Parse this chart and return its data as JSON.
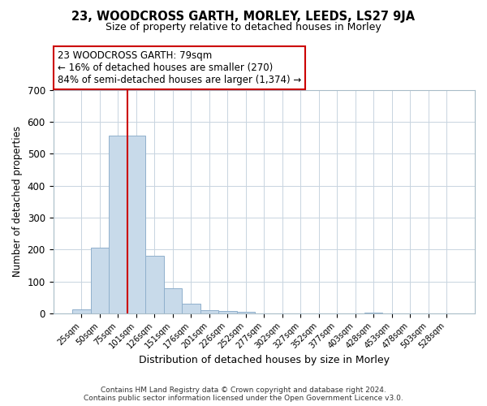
{
  "title1": "23, WOODCROSS GARTH, MORLEY, LEEDS, LS27 9JA",
  "title2": "Size of property relative to detached houses in Morley",
  "xlabel": "Distribution of detached houses by size in Morley",
  "ylabel": "Number of detached properties",
  "bin_labels": [
    "25sqm",
    "50sqm",
    "75sqm",
    "101sqm",
    "126sqm",
    "151sqm",
    "176sqm",
    "201sqm",
    "226sqm",
    "252sqm",
    "277sqm",
    "302sqm",
    "327sqm",
    "352sqm",
    "377sqm",
    "403sqm",
    "428sqm",
    "453sqm",
    "478sqm",
    "503sqm",
    "528sqm"
  ],
  "bar_heights": [
    13,
    205,
    556,
    556,
    180,
    78,
    30,
    10,
    8,
    5,
    0,
    0,
    0,
    0,
    0,
    0,
    3,
    0,
    0,
    0,
    0
  ],
  "bar_color": "#c8daea",
  "bar_edge_color": "#90b0cc",
  "highlight_color": "#cc0000",
  "annotation_line1": "23 WOODCROSS GARTH: 79sqm",
  "annotation_line2": "← 16% of detached houses are smaller (270)",
  "annotation_line3": "84% of semi-detached houses are larger (1,374) →",
  "annotation_box_color": "#ffffff",
  "annotation_box_edge": "#cc0000",
  "ylim": [
    0,
    700
  ],
  "yticks": [
    0,
    100,
    200,
    300,
    400,
    500,
    600,
    700
  ],
  "footer1": "Contains HM Land Registry data © Crown copyright and database right 2024.",
  "footer2": "Contains public sector information licensed under the Open Government Licence v3.0.",
  "bg_color": "#ffffff",
  "plot_bg_color": "#ffffff",
  "grid_color": "#c8d4e0",
  "red_line_bar_index": 2,
  "bar_width": 1.0
}
